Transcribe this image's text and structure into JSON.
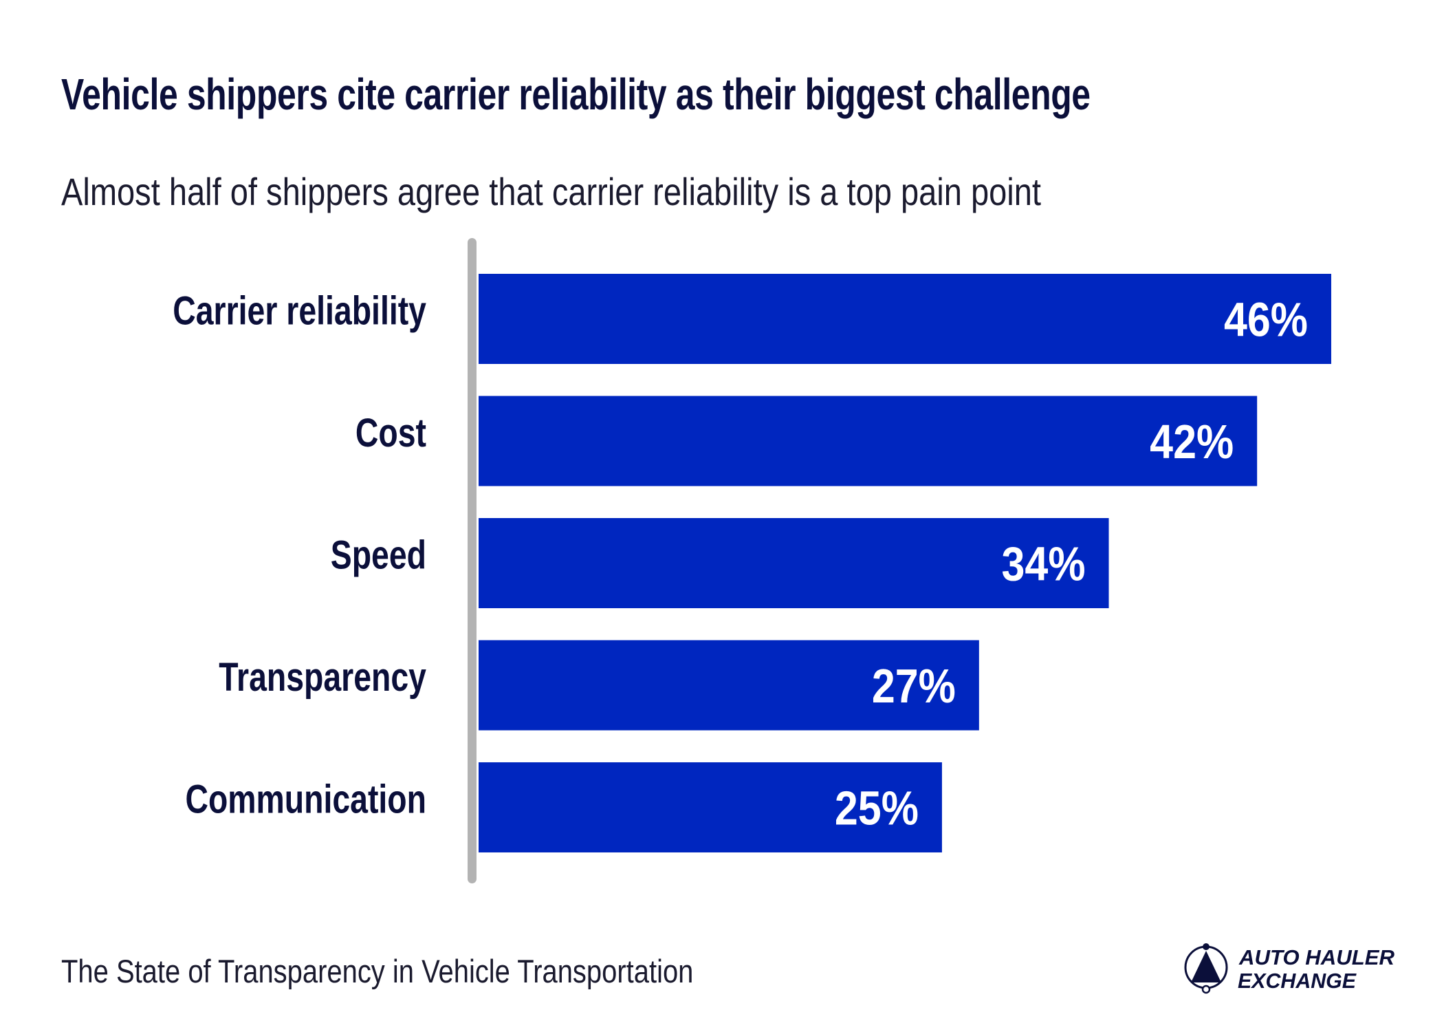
{
  "title": "Vehicle shippers cite carrier reliability as their biggest challenge",
  "subtitle": "Almost half of shippers agree that carrier reliability is a top pain point",
  "footer": "The State of Transparency in Vehicle Transportation",
  "logo": {
    "text_line1": "AUTO HAULER",
    "text_line2": "EXCHANGE",
    "icon": "triangle-in-circle-logo-icon"
  },
  "colors": {
    "bar": "#0026bf",
    "text": "#0b0f3a",
    "axis": "#b3b3b3",
    "label": "#ffffff"
  },
  "chart_data": {
    "type": "bar",
    "orientation": "horizontal",
    "categories": [
      "Carrier reliability",
      "Cost",
      "Speed",
      "Transparency",
      "Communication"
    ],
    "values": [
      46,
      42,
      34,
      27,
      25
    ],
    "data_labels": [
      "46%",
      "42%",
      "34%",
      "27%",
      "25%"
    ],
    "unit": "%",
    "xlim": [
      0,
      46
    ],
    "grid": false,
    "legend": "none"
  }
}
